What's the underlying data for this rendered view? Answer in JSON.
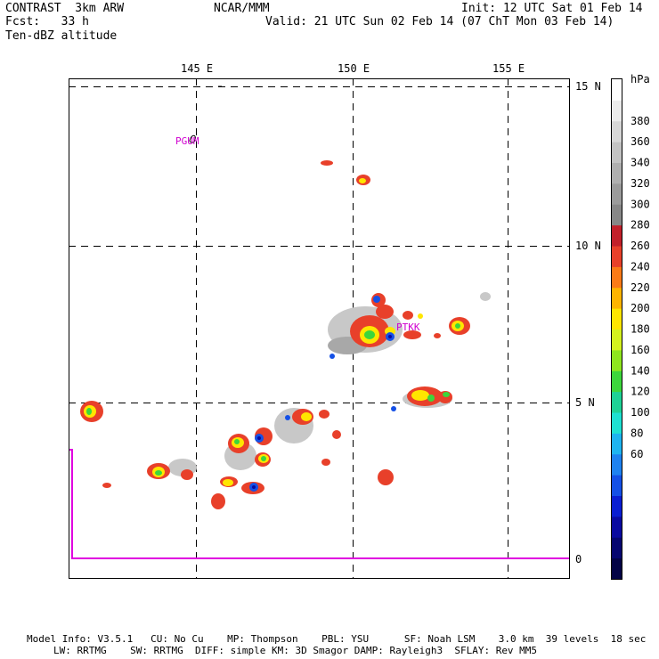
{
  "header": {
    "model": "CONTRAST  3km ARW",
    "forecast": "Fcst:   33 h",
    "field": "Ten-dBZ altitude",
    "center": "NCAR/MMM",
    "init": "Init: 12 UTC Sat 01 Feb 14",
    "valid": "Valid: 21 UTC Sun 02 Feb 14 (07 ChT Mon 03 Feb 14)"
  },
  "map": {
    "lon_labels": [
      "145 E",
      "150 E",
      "155 E"
    ],
    "lat_labels": [
      "15 N",
      "10 N",
      "5 N",
      "0"
    ],
    "stations": [
      "PGUM",
      "PTKK"
    ]
  },
  "colorbar": {
    "unit": "hPa",
    "labels": [
      "380",
      "360",
      "340",
      "320",
      "300",
      "280",
      "260",
      "240",
      "220",
      "200",
      "180",
      "160",
      "140",
      "120",
      "100",
      "80",
      "60"
    ],
    "colors": [
      "#ffffff",
      "#ebebeb",
      "#d7d7d7",
      "#c3c3c3",
      "#afafaf",
      "#9b9b9b",
      "#878787",
      "#c2202a",
      "#e8402a",
      "#fb7a17",
      "#ffb400",
      "#ffe600",
      "#d4f21e",
      "#8ee61e",
      "#3cd63c",
      "#1ed296",
      "#1ee1d2",
      "#1eb4f0",
      "#1e82f0",
      "#1450e6",
      "#0a1ed2",
      "#0a0aa0",
      "#060670",
      "#030345"
    ]
  },
  "footer": {
    "line1": "Model Info: V3.5.1   CU: No Cu    MP: Thompson    PBL: YSU      SF: Noah LSM    3.0 km  39 levels  18 sec",
    "line2": "LW: RRTMG    SW: RRTMG  DIFF: simple KM: 3D Smagor DAMP: Rayleigh3  SFLAY: Rev MM5"
  }
}
